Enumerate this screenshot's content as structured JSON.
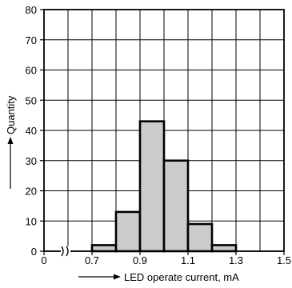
{
  "chart_data": {
    "type": "bar",
    "title": "",
    "xlabel": "LED operate current, mA",
    "ylabel": "Quantity",
    "x_tick_labels": [
      "0",
      "0.7",
      "0.9",
      "1.1",
      "1.3",
      "1.5"
    ],
    "x_tick_values": [
      0.5,
      0.7,
      0.9,
      1.1,
      1.3,
      1.5
    ],
    "y_tick_labels": [
      "0",
      "10",
      "20",
      "30",
      "40",
      "50",
      "60",
      "70",
      "80"
    ],
    "y_tick_values": [
      0,
      10,
      20,
      30,
      40,
      50,
      60,
      70,
      80
    ],
    "xlim": [
      0.5,
      1.5
    ],
    "ylim": [
      0,
      80
    ],
    "grid": true,
    "axis_break": "between 0 and 0.7 on x-axis",
    "bin_width": 0.1,
    "bins": [
      {
        "start": 0.7,
        "end": 0.8,
        "value": 2
      },
      {
        "start": 0.8,
        "end": 0.9,
        "value": 13
      },
      {
        "start": 0.9,
        "end": 1.0,
        "value": 43
      },
      {
        "start": 1.0,
        "end": 1.1,
        "value": 30
      },
      {
        "start": 1.1,
        "end": 1.2,
        "value": 9
      },
      {
        "start": 1.2,
        "end": 1.3,
        "value": 2
      }
    ],
    "colors": {
      "bar_fill": "#cccccc",
      "bar_stroke": "#000000",
      "grid": "#000000"
    }
  }
}
